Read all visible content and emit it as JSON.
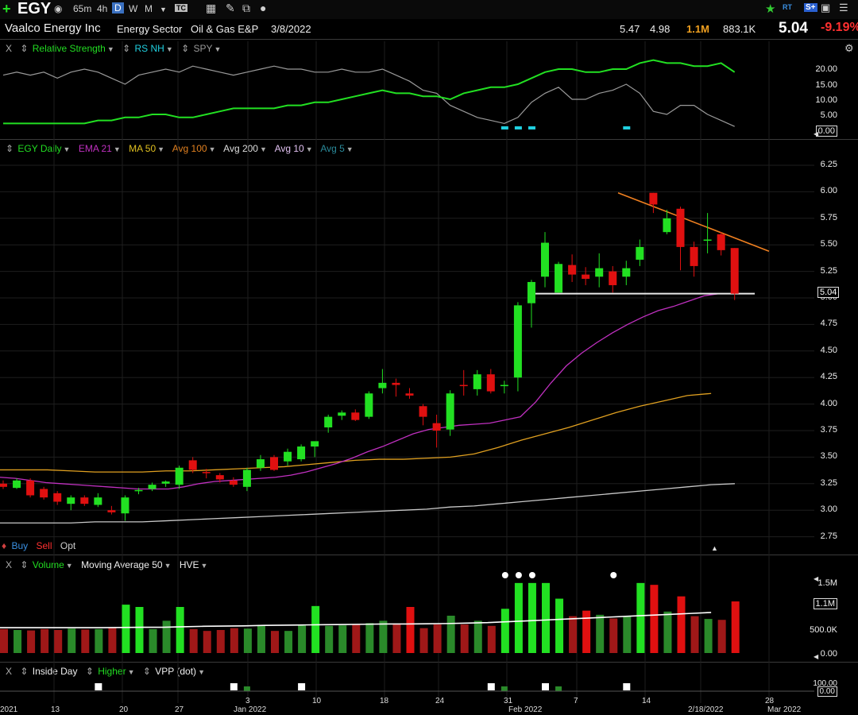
{
  "toolbar": {
    "symbol": "EGY",
    "timeframes": [
      "65m",
      "4h",
      "D",
      "W",
      "M"
    ],
    "active_timeframe": "D",
    "icons": [
      "plus-icon",
      "bell-icon",
      "dropdown-icon",
      "tc-icon",
      "calculator-icon",
      "pencil-icon",
      "layers-icon",
      "share-icon",
      "star-icon",
      "rt-icon",
      "s-plus-icon",
      "save-icon",
      "stack-icon"
    ],
    "rt_label": "RT",
    "splus_label": "S+"
  },
  "info": {
    "name": "Vaalco Energy Inc",
    "sector": "Energy Sector",
    "industry": "Oil & Gas E&P",
    "date": "3/8/2022",
    "high": "5.47",
    "low": "4.98",
    "volume": "1.1M",
    "avg_volume": "883.1K",
    "last": "5.04",
    "change_pct": "-9.19%"
  },
  "rs_panel": {
    "close": "X",
    "title": "Relative Strength",
    "rs_nh": "RS NH",
    "spy": "SPY",
    "y_labels": [
      "20.00",
      "15.00",
      "10.00",
      "5.00",
      "0.00"
    ]
  },
  "price_panel": {
    "title": "EGY Daily",
    "ema21": "EMA 21",
    "ma50": "MA 50",
    "avg100": "Avg 100",
    "avg200": "Avg 200",
    "avg10": "Avg 10",
    "avg5": "Avg 5",
    "y_labels": [
      "6.25",
      "6.00",
      "5.75",
      "5.50",
      "5.25",
      "5.00",
      "4.75",
      "4.50",
      "4.25",
      "4.00",
      "3.75",
      "3.50",
      "3.25",
      "3.00",
      "2.75"
    ],
    "last_price": "5.04",
    "buy": "Buy",
    "sell": "Sell",
    "opt": "Opt",
    "colors": {
      "up": "#22e022",
      "down": "#e01010",
      "ema21": "#c030c0",
      "ma50": "#e0a020",
      "ma200": "#c8c8c8",
      "trend": "#f08020"
    }
  },
  "volume_panel": {
    "close": "X",
    "title": "Volume",
    "ma": "Moving Average 50",
    "hve": "HVE",
    "y_labels": [
      "1.5M",
      "1.1M",
      "500.0K",
      "0.00"
    ]
  },
  "signal_panel": {
    "close": "X",
    "inside_day": "Inside Day",
    "higher": "Higher",
    "vpp": "VPP (dot)",
    "y_labels": [
      "100.00",
      "0.00"
    ]
  },
  "x_axis": {
    "labels": [
      "2021",
      "13",
      "20",
      "27",
      "Jan 2022",
      "3",
      "10",
      "18",
      "24",
      "31",
      "Feb 2022",
      "7",
      "14",
      "2/18/2022",
      "28",
      "Mar 2022"
    ]
  },
  "chart_data": {
    "type": "candlestick",
    "title": "EGY Daily",
    "ylim": [
      2.75,
      6.25
    ],
    "candles": [
      [
        3.25,
        3.28,
        3.2,
        3.22
      ],
      [
        3.21,
        3.3,
        3.2,
        3.28
      ],
      [
        3.28,
        3.3,
        3.12,
        3.14
      ],
      [
        3.2,
        3.22,
        3.1,
        3.12
      ],
      [
        3.16,
        3.18,
        3.05,
        3.08
      ],
      [
        3.06,
        3.14,
        3.0,
        3.12
      ],
      [
        3.12,
        3.14,
        3.04,
        3.06
      ],
      [
        3.05,
        3.16,
        3.03,
        3.12
      ],
      [
        3.0,
        3.04,
        2.96,
        2.98
      ],
      [
        2.97,
        3.14,
        2.9,
        3.12
      ],
      [
        3.18,
        3.21,
        3.15,
        3.19
      ],
      [
        3.2,
        3.26,
        3.18,
        3.24
      ],
      [
        3.25,
        3.28,
        3.22,
        3.27
      ],
      [
        3.24,
        3.42,
        3.2,
        3.4
      ],
      [
        3.47,
        3.5,
        3.35,
        3.38
      ],
      [
        3.36,
        3.39,
        3.3,
        3.35
      ],
      [
        3.33,
        3.35,
        3.26,
        3.29
      ],
      [
        3.28,
        3.31,
        3.22,
        3.24
      ],
      [
        3.22,
        3.4,
        3.18,
        3.38
      ],
      [
        3.4,
        3.52,
        3.37,
        3.48
      ],
      [
        3.5,
        3.52,
        3.37,
        3.38
      ],
      [
        3.46,
        3.58,
        3.42,
        3.55
      ],
      [
        3.48,
        3.62,
        3.46,
        3.6
      ],
      [
        3.6,
        3.64,
        3.5,
        3.65
      ],
      [
        3.78,
        3.9,
        3.73,
        3.88
      ],
      [
        3.89,
        3.94,
        3.85,
        3.92
      ],
      [
        3.92,
        3.95,
        3.84,
        3.85
      ],
      [
        3.88,
        4.12,
        3.86,
        4.1
      ],
      [
        4.15,
        4.33,
        4.1,
        4.2
      ],
      [
        4.2,
        4.24,
        4.07,
        4.18
      ],
      [
        4.1,
        4.15,
        4.05,
        4.08
      ],
      [
        3.98,
        4.0,
        3.8,
        3.88
      ],
      [
        3.82,
        3.9,
        3.59,
        3.75
      ],
      [
        3.76,
        4.13,
        3.7,
        4.1
      ],
      [
        4.18,
        4.32,
        4.08,
        4.17
      ],
      [
        4.14,
        4.32,
        4.08,
        4.28
      ],
      [
        4.28,
        4.33,
        4.1,
        4.12
      ],
      [
        4.18,
        4.22,
        4.1,
        4.18
      ],
      [
        4.25,
        4.96,
        4.12,
        4.93
      ],
      [
        4.95,
        5.17,
        4.72,
        5.15
      ],
      [
        5.2,
        5.62,
        5.1,
        5.52
      ],
      [
        5.05,
        5.34,
        5.05,
        5.32
      ],
      [
        5.31,
        5.41,
        5.15,
        5.22
      ],
      [
        5.22,
        5.29,
        5.12,
        5.18
      ],
      [
        5.2,
        5.42,
        5.1,
        5.28
      ],
      [
        5.25,
        5.3,
        5.05,
        5.12
      ],
      [
        5.2,
        5.35,
        5.12,
        5.28
      ],
      [
        5.36,
        5.55,
        5.3,
        5.48
      ],
      [
        5.99,
        5.99,
        5.8,
        5.88
      ],
      [
        5.62,
        5.83,
        5.6,
        5.75
      ],
      [
        5.84,
        5.86,
        5.26,
        5.48
      ],
      [
        5.48,
        5.53,
        5.2,
        5.3
      ],
      [
        5.54,
        5.8,
        5.42,
        5.55
      ],
      [
        5.6,
        5.62,
        5.4,
        5.45
      ],
      [
        5.47,
        5.47,
        4.98,
        5.04
      ]
    ],
    "ema21": [
      3.31,
      3.3,
      3.28,
      3.26,
      3.25,
      3.24,
      3.23,
      3.22,
      3.21,
      3.2,
      3.2,
      3.2,
      3.22,
      3.25,
      3.27,
      3.28,
      3.29,
      3.3,
      3.31,
      3.33,
      3.36,
      3.4,
      3.44,
      3.49,
      3.55,
      3.6,
      3.66,
      3.72,
      3.76,
      3.78,
      3.8,
      3.81,
      3.82,
      3.85,
      3.88,
      4.02,
      4.2,
      4.36,
      4.48,
      4.58,
      4.67,
      4.75,
      4.82,
      4.88,
      4.92,
      4.97,
      5.02,
      5.04
    ],
    "ma50": [
      3.38,
      3.38,
      3.38,
      3.37,
      3.36,
      3.36,
      3.36,
      3.37,
      3.37,
      3.38,
      3.39,
      3.4,
      3.41,
      3.43,
      3.45,
      3.47,
      3.48,
      3.48,
      3.49,
      3.5,
      3.53,
      3.59,
      3.66,
      3.72,
      3.78,
      3.85,
      3.92,
      3.98,
      4.03,
      4.08,
      4.1
    ],
    "ma200": [
      2.88,
      2.88,
      2.88,
      2.88,
      2.89,
      2.89,
      2.89,
      2.9,
      2.91,
      2.92,
      2.93,
      2.94,
      2.95,
      2.96,
      2.97,
      2.98,
      2.99,
      3.0,
      3.01,
      3.03,
      3.04,
      3.06,
      3.08,
      3.1,
      3.12,
      3.14,
      3.16,
      3.18,
      3.2,
      3.22,
      3.24,
      3.25
    ],
    "support_level": 5.04,
    "trendline": [
      [
        5.99
      ],
      [
        5.44
      ]
    ],
    "volume_k": [
      520,
      500,
      490,
      520,
      500,
      530,
      510,
      520,
      560,
      1050,
      1000,
      520,
      700,
      1000,
      520,
      480,
      500,
      540,
      530,
      610,
      480,
      480,
      600,
      1020,
      590,
      600,
      620,
      650,
      700,
      640,
      1000,
      540,
      620,
      810,
      620,
      700,
      590,
      960,
      1520,
      1520,
      1520,
      1180,
      800,
      920,
      830,
      750,
      800,
      1520,
      1480,
      900,
      1230,
      800,
      740,
      720,
      1120
    ],
    "volume_ma_k": [
      550,
      550,
      550,
      550,
      550,
      550,
      555,
      560,
      560,
      570,
      580,
      585,
      590,
      600,
      605,
      610,
      615,
      620,
      625,
      630,
      630,
      635,
      640,
      650,
      660,
      680,
      700,
      720,
      740,
      760,
      780,
      800,
      820,
      840,
      860,
      880
    ]
  },
  "rs_data": {
    "rs_line": [
      2,
      2,
      2,
      2,
      2,
      2,
      2,
      3,
      3,
      4,
      4,
      5,
      5,
      4,
      4,
      5,
      6,
      7,
      7,
      7,
      7,
      8,
      8,
      9,
      9,
      10,
      11,
      12,
      13,
      12,
      12,
      11,
      11,
      10,
      12,
      13,
      14,
      14,
      15,
      17,
      19,
      20,
      20,
      19,
      19,
      20,
      20,
      22,
      23,
      22,
      22,
      21,
      21,
      22,
      19
    ],
    "spy_line": [
      18,
      19,
      18,
      19,
      17,
      19,
      20,
      19,
      17,
      15,
      18,
      19,
      20,
      19,
      21,
      20,
      19,
      18,
      19,
      20,
      21,
      20,
      20,
      19,
      19,
      20,
      19,
      19,
      20,
      18,
      16,
      13,
      12,
      8,
      6,
      4,
      3,
      2,
      4,
      9,
      12,
      14,
      10,
      10,
      12,
      13,
      15,
      12,
      6,
      5,
      8,
      8,
      5,
      3,
      1
    ]
  }
}
